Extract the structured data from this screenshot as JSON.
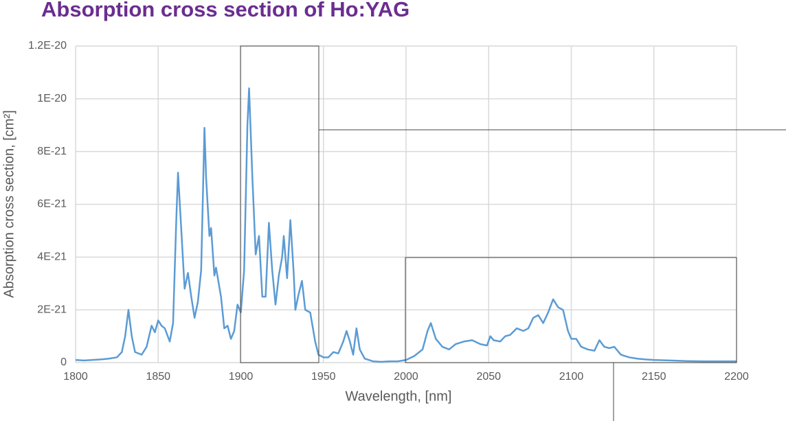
{
  "chart_data": {
    "type": "line",
    "title": "Absorption cross section of Ho:YAG",
    "xlabel": "Wavelength, [nm]",
    "ylabel": "Absorption cross section, [cm²]",
    "color": "#5b9bd5",
    "grid": true,
    "xlim": [
      1800,
      2200
    ],
    "xticks": [
      1800,
      1850,
      1900,
      1950,
      2000,
      2050,
      2100,
      2150,
      2200
    ],
    "ylim": [
      0,
      1.2e-20
    ],
    "yticks": [
      0,
      {
        "value": 2e-21,
        "label": "2E-21"
      },
      {
        "value": 4e-21,
        "label": "4E-21"
      },
      {
        "value": 6e-21,
        "label": "6E-21"
      },
      {
        "value": 8e-21,
        "label": "8E-21"
      },
      {
        "value": 1e-20,
        "label": "1E-20"
      },
      {
        "value": 1.2e-20,
        "label": "1.2E-20"
      }
    ],
    "x": [
      1800,
      1805,
      1810,
      1815,
      1820,
      1825,
      1828,
      1830,
      1832,
      1834,
      1836,
      1840,
      1843,
      1846,
      1848,
      1850,
      1852,
      1854,
      1857,
      1859,
      1861,
      1862,
      1864,
      1866,
      1868,
      1870,
      1872,
      1874,
      1876,
      1878,
      1879,
      1881,
      1882,
      1884,
      1885,
      1888,
      1890,
      1892,
      1894,
      1896,
      1898,
      1900,
      1902,
      1904,
      1905,
      1907,
      1909,
      1911,
      1913,
      1915,
      1917,
      1919,
      1921,
      1923,
      1925,
      1926,
      1928,
      1930,
      1932,
      1933,
      1935,
      1937,
      1939,
      1942,
      1945,
      1947,
      1950,
      1953,
      1956,
      1959,
      1962,
      1964,
      1966,
      1968,
      1970,
      1972,
      1975,
      1980,
      1985,
      1990,
      1995,
      2000,
      2005,
      2010,
      2013,
      2015,
      2018,
      2022,
      2026,
      2030,
      2035,
      2040,
      2045,
      2049,
      2051,
      2053,
      2057,
      2060,
      2063,
      2067,
      2071,
      2074,
      2077,
      2080,
      2083,
      2086,
      2089,
      2092,
      2095,
      2098,
      2100,
      2103,
      2106,
      2110,
      2114,
      2117,
      2120,
      2123,
      2126,
      2130,
      2135,
      2140,
      2145,
      2150,
      2160,
      2170,
      2180,
      2190,
      2200
    ],
    "values": [
      1e-22,
      8e-23,
      1e-22,
      1.2e-22,
      1.5e-22,
      2e-22,
      4e-22,
      1e-21,
      2e-21,
      1e-21,
      4e-22,
      3e-22,
      6e-22,
      1.4e-21,
      1.15e-21,
      1.6e-21,
      1.4e-21,
      1.3e-21,
      8e-22,
      1.5e-21,
      5.5e-21,
      7.2e-21,
      5e-21,
      2.8e-21,
      3.4e-21,
      2.5e-21,
      1.7e-21,
      2.3e-21,
      3.5e-21,
      8.9e-21,
      7e-21,
      4.8e-21,
      5.1e-21,
      3.3e-21,
      3.6e-21,
      2.5e-21,
      1.3e-21,
      1.4e-21,
      9e-22,
      1.2e-21,
      2.2e-21,
      1.9e-21,
      3.5e-21,
      9e-21,
      1.04e-20,
      7e-21,
      4.1e-21,
      4.8e-21,
      2.5e-21,
      2.5e-21,
      5.3e-21,
      3.5e-21,
      2.2e-21,
      3.3e-21,
      4e-21,
      4.8e-21,
      3.2e-21,
      5.4e-21,
      3.4e-21,
      2e-21,
      2.6e-21,
      3.1e-21,
      2e-21,
      1.9e-21,
      8e-22,
      3e-22,
      2e-22,
      2e-22,
      4e-22,
      3.5e-22,
      8e-22,
      1.2e-21,
      8e-22,
      3e-22,
      1.3e-21,
      5e-22,
      1.5e-22,
      5e-23,
      3e-23,
      5e-23,
      5e-23,
      1e-22,
      2.5e-22,
      5e-22,
      1.2e-21,
      1.5e-21,
      9e-22,
      6e-22,
      5e-22,
      7e-22,
      8e-22,
      8.5e-22,
      7e-22,
      6.5e-22,
      1e-21,
      8.5e-22,
      8e-22,
      1e-21,
      1.05e-21,
      1.3e-21,
      1.2e-21,
      1.3e-21,
      1.7e-21,
      1.8e-21,
      1.5e-21,
      1.9e-21,
      2.4e-21,
      2.1e-21,
      2e-21,
      1.2e-21,
      9e-22,
      9e-22,
      6e-22,
      5e-22,
      4.5e-22,
      8.5e-22,
      6e-22,
      5.5e-22,
      6e-22,
      3e-22,
      2e-22,
      1.5e-22,
      1.2e-22,
      1e-22,
      8e-23,
      6e-23,
      5e-23,
      5e-23,
      5e-23
    ]
  }
}
